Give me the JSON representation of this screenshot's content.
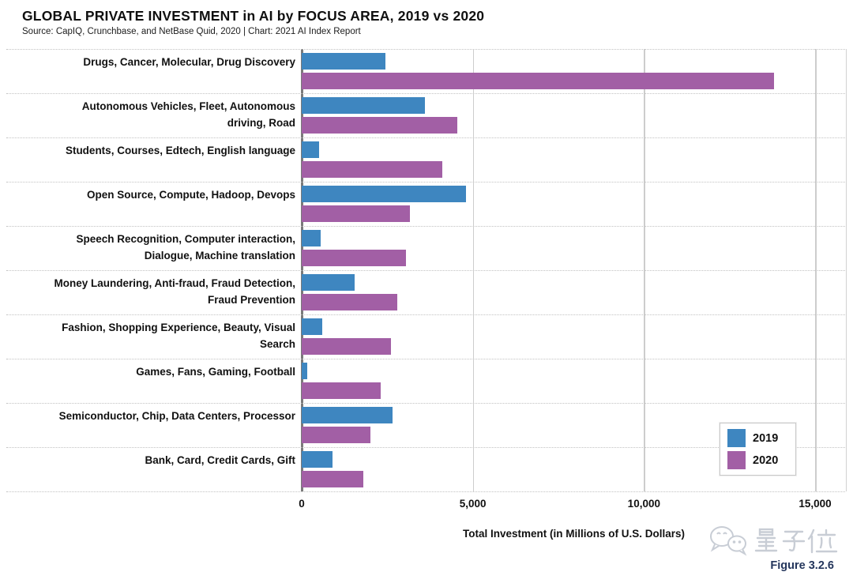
{
  "header": {
    "title": "GLOBAL PRIVATE INVESTMENT in AI by FOCUS AREA, 2019 vs 2020",
    "subtitle": "Source: CapIQ, Crunchbase, and NetBase Quid, 2020 | Chart: 2021 AI Index Report"
  },
  "chart_data": {
    "type": "bar",
    "orientation": "horizontal",
    "title": "GLOBAL PRIVATE INVESTMENT in AI by FOCUS AREA, 2019 vs 2020",
    "xlabel": "Total Investment (in Millions of U.S. Dollars)",
    "ylabel": "",
    "xlim": [
      0,
      15900
    ],
    "xticks": [
      0,
      5000,
      10000,
      15000
    ],
    "xtick_labels": [
      "0",
      "5,000",
      "10,000",
      "15,000"
    ],
    "grid": true,
    "legend_position": "lower-right",
    "categories": [
      "Drugs, Cancer, Molecular, Drug Discovery",
      "Autonomous Vehicles, Fleet, Autonomous driving, Road",
      "Students, Courses, Edtech, English language",
      "Open Source, Compute, Hadoop, Devops",
      "Speech Recognition, Computer interaction, Dialogue, Machine translation",
      "Money Laundering, Anti-fraud, Fraud Detection, Fraud Prevention",
      "Fashion, Shopping Experience, Beauty, Visual Search",
      "Games, Fans, Gaming, Football",
      "Semiconductor, Chip, Data Centers, Processor",
      "Bank, Card, Credit Cards, Gift"
    ],
    "category_lines": [
      [
        "Drugs, Cancer, Molecular, Drug Discovery"
      ],
      [
        "Autonomous Vehicles, Fleet, Autonomous",
        "driving, Road"
      ],
      [
        "Students, Courses, Edtech, English language"
      ],
      [
        "Open Source, Compute, Hadoop, Devops"
      ],
      [
        "Speech Recognition, Computer interaction,",
        "Dialogue, Machine translation"
      ],
      [
        "Money Laundering, Anti-fraud, Fraud Detection,",
        "Fraud Prevention"
      ],
      [
        "Fashion, Shopping Experience, Beauty, Visual",
        "Search"
      ],
      [
        "Games, Fans, Gaming, Football"
      ],
      [
        "Semiconductor, Chip, Data Centers, Processor"
      ],
      [
        "Bank, Card, Credit Cards, Gift"
      ]
    ],
    "series": [
      {
        "name": "2019",
        "color": "#3E86C0",
        "values": [
          2450,
          3600,
          500,
          4800,
          550,
          1550,
          600,
          170,
          2650,
          900
        ]
      },
      {
        "name": "2020",
        "color": "#A25FA5",
        "values": [
          13800,
          4550,
          4100,
          3150,
          3050,
          2800,
          2600,
          2300,
          2000,
          1800
        ]
      }
    ]
  },
  "legend": {
    "items": [
      {
        "label": "2019",
        "color": "#3E86C0"
      },
      {
        "label": "2020",
        "color": "#A25FA5"
      }
    ]
  },
  "footer": {
    "watermark_text": "量子位",
    "figure_label": "Figure 3.2.6"
  },
  "colors": {
    "bar_2019": "#3E86C0",
    "bar_2020": "#A25FA5",
    "gridline": "#cdcdcd",
    "axis_line": "#7a7a7a",
    "figure_label": "#24365c",
    "watermark": "#c8cdd5"
  }
}
